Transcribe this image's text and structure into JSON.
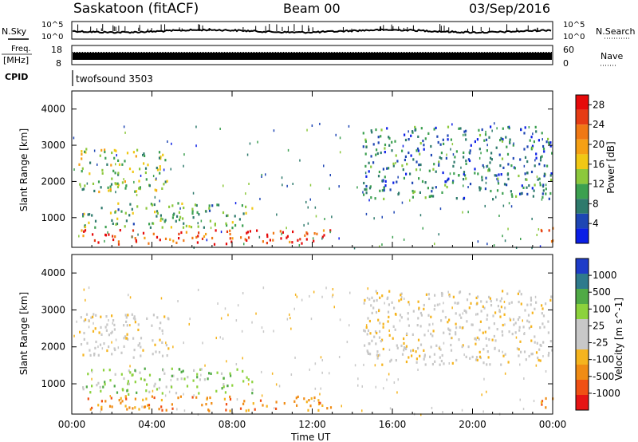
{
  "header": {
    "station": "Saskatoon (fitACF)",
    "beam": "Beam 00",
    "date": "03/Sep/2016"
  },
  "left_labels": {
    "nsky": "N.Sky",
    "freq": "Freq.",
    "freq_unit": "[MHz]",
    "cpid": "CPID"
  },
  "right_labels": {
    "nsearch": "N.Search",
    "nave": "Nave"
  },
  "cpid_name": "twofsound 3503",
  "noise_ticks": {
    "left": [
      "10^5",
      "10^0"
    ],
    "right": [
      "10^5",
      "10^0"
    ]
  },
  "freq_ticks": {
    "left": [
      "18",
      "8"
    ],
    "right": [
      "60",
      "0"
    ]
  },
  "colors": {
    "power_scale": [
      "#0a1ee6",
      "#1e46b4",
      "#2e7a6c",
      "#3ca050",
      "#8cc83c",
      "#f0c814",
      "#f5a014",
      "#f07814",
      "#e63c14",
      "#e60a0a"
    ],
    "velocity_scale": [
      "#e61414",
      "#f05014",
      "#f08c14",
      "#f5b41e",
      "#c8c8c8",
      "#c8c8c8",
      "#8cd23c",
      "#50aa46",
      "#2e7a8c",
      "#1e3cc8"
    ]
  },
  "chart_data": [
    {
      "type": "heatmap",
      "title": "Power",
      "xlabel": "",
      "ylabel": "Slant Range [km]",
      "x_ticks": [
        "00:00",
        "04:00",
        "08:00",
        "12:00",
        "16:00",
        "20:00",
        "00:00"
      ],
      "x_range_hours": [
        0,
        24
      ],
      "y_ticks": [
        1000,
        2000,
        3000,
        4000
      ],
      "y_range_km": [
        180,
        4500
      ],
      "colorbar": {
        "label": "Power [dB]",
        "ticks": [
          4,
          8,
          12,
          16,
          20,
          24,
          28
        ],
        "range": [
          0,
          30
        ]
      },
      "features": [
        {
          "name": "near_range_band",
          "t0": 0.3,
          "t1": 13.0,
          "r0": 250,
          "r1": 650,
          "value": 24
        },
        {
          "name": "mid_band",
          "t0": 0.5,
          "t1": 9.0,
          "r0": 700,
          "r1": 1400,
          "value": 10
        },
        {
          "name": "far_arc_morning",
          "t0": 0.3,
          "t1": 4.8,
          "r0": 1700,
          "r1": 2900,
          "value": 12
        },
        {
          "name": "evening_arc",
          "t0": 14.5,
          "t1": 24.0,
          "r0": 1500,
          "r1": 3500,
          "value": 6
        },
        {
          "name": "late_near_band",
          "t0": 23.2,
          "t1": 24.0,
          "r0": 300,
          "r1": 700,
          "value": 26
        }
      ]
    },
    {
      "type": "heatmap",
      "title": "Velocity",
      "xlabel": "Time UT",
      "ylabel": "Slant Range [km]",
      "x_ticks": [
        "00:00",
        "04:00",
        "08:00",
        "12:00",
        "16:00",
        "20:00",
        "00:00"
      ],
      "x_range_hours": [
        0,
        24
      ],
      "y_ticks": [
        1000,
        2000,
        3000,
        4000
      ],
      "y_range_km": [
        180,
        4500
      ],
      "colorbar": {
        "label": "Velocity [m s^-1]",
        "ticks": [
          "1000",
          "500",
          "100",
          "25",
          "-25",
          "-100",
          "-500",
          "-1000"
        ]
      },
      "features": [
        {
          "name": "near_range_band",
          "t0": 0.3,
          "t1": 13.0,
          "r0": 250,
          "r1": 650,
          "value": -150
        },
        {
          "name": "mid_band",
          "t0": 0.5,
          "t1": 9.0,
          "r0": 700,
          "r1": 1400,
          "value": 60
        },
        {
          "name": "far_arc_morning",
          "t0": 0.3,
          "t1": 4.8,
          "r0": 1700,
          "r1": 2900,
          "value": 0
        },
        {
          "name": "evening_arc",
          "t0": 14.5,
          "t1": 24.0,
          "r0": 1500,
          "r1": 3500,
          "value": 0
        },
        {
          "name": "late_near_band",
          "t0": 23.2,
          "t1": 24.0,
          "r0": 300,
          "r1": 700,
          "value": -300
        }
      ]
    }
  ]
}
